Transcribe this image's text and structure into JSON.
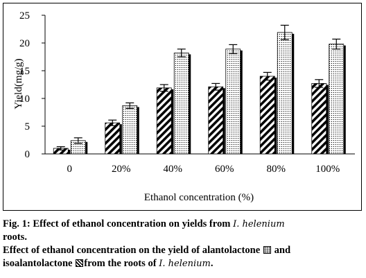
{
  "chart_data": {
    "type": "bar",
    "categories": [
      "0",
      "20%",
      "40%",
      "60%",
      "80%",
      "100%"
    ],
    "series": [
      {
        "name": "isoalantolactone",
        "pattern": "hatch",
        "values": [
          1.0,
          5.6,
          11.9,
          12.1,
          14.0,
          12.7
        ],
        "errors": [
          0.3,
          0.5,
          0.6,
          0.6,
          0.7,
          0.7
        ]
      },
      {
        "name": "alantolactone",
        "pattern": "dots",
        "values": [
          2.4,
          8.7,
          18.2,
          18.9,
          21.9,
          19.8
        ],
        "errors": [
          0.5,
          0.5,
          0.7,
          0.8,
          1.3,
          0.9
        ]
      }
    ],
    "title": "",
    "xlabel": "Ethanol concentration (%)",
    "ylabel": "Yield(mg/g)",
    "ylim": [
      0,
      25
    ],
    "yticks": [
      "0",
      "5",
      "10",
      "15",
      "20",
      "25"
    ],
    "grid": false,
    "legend": "none"
  },
  "caption": {
    "fig_prefix": "Fig. 1: Effect of ethanol concentration on yields from ",
    "species": "I. helenium",
    "line2": "roots.",
    "line3_a": "Effect of ethanol concentration on the yield of alantolactone",
    "line3_b": "and",
    "line4_a": "isoalantolactone",
    "line4_b": "from the roots of ",
    "line4_end": "."
  },
  "colors": {
    "ink": "#000000",
    "background": "#ffffff"
  }
}
